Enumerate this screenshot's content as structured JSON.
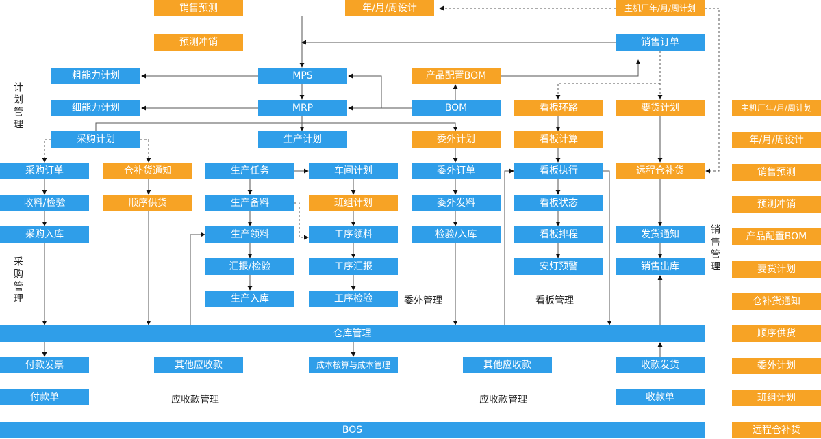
{
  "nodes": [
    {
      "label": "销售预测"
    },
    {
      "label": "年/月/周设计"
    },
    {
      "label": "主机厂年/月/周计划"
    },
    {
      "label": "预测冲销"
    },
    {
      "label": "销售订单"
    },
    {
      "label": "粗能力计划"
    },
    {
      "label": "MPS"
    },
    {
      "label": "产品配置BOM"
    },
    {
      "label": "细能力计划"
    },
    {
      "label": "MRP"
    },
    {
      "label": "BOM"
    },
    {
      "label": "看板环路"
    },
    {
      "label": "要货计划"
    },
    {
      "label": "采购计划"
    },
    {
      "label": "生产计划"
    },
    {
      "label": "委外计划"
    },
    {
      "label": "看板计算"
    },
    {
      "label": "采购订单"
    },
    {
      "label": "仓补货通知"
    },
    {
      "label": "生产任务"
    },
    {
      "label": "车间计划"
    },
    {
      "label": "委外订单"
    },
    {
      "label": "看板执行"
    },
    {
      "label": "远程仓补货"
    },
    {
      "label": "收料/检验"
    },
    {
      "label": "顺序供货"
    },
    {
      "label": "生产备料"
    },
    {
      "label": "班组计划"
    },
    {
      "label": "委外发料"
    },
    {
      "label": "看板状态"
    },
    {
      "label": "采购入库"
    },
    {
      "label": "生产领料"
    },
    {
      "label": "工序领料"
    },
    {
      "label": "检验/入库"
    },
    {
      "label": "看板排程"
    },
    {
      "label": "发货通知"
    },
    {
      "label": "汇报/检验"
    },
    {
      "label": "工序汇报"
    },
    {
      "label": "安灯预警"
    },
    {
      "label": "销售出库"
    },
    {
      "label": "生产入库"
    },
    {
      "label": "工序检验"
    },
    {
      "label": "仓库管理"
    },
    {
      "label": "付款发票"
    },
    {
      "label": "其他应收款"
    },
    {
      "label": "成本核算与成本管理"
    },
    {
      "label": "其他应收款"
    },
    {
      "label": "收款发货"
    },
    {
      "label": "付款单"
    },
    {
      "label": "收款单"
    },
    {
      "label": "BOS"
    }
  ],
  "legend": [
    "主机厂年/月/周计划",
    "年/月/周设计",
    "销售预测",
    "预测冲销",
    "产品配置BOM",
    "要货计划",
    "仓补货通知",
    "顺序供货",
    "委外计划",
    "班组计划",
    "远程仓补货"
  ],
  "section_labels": [
    "计划管理",
    "采购管理",
    "委外管理",
    "看板管理",
    "应收款管理",
    "应收款管理",
    "销售管理"
  ]
}
